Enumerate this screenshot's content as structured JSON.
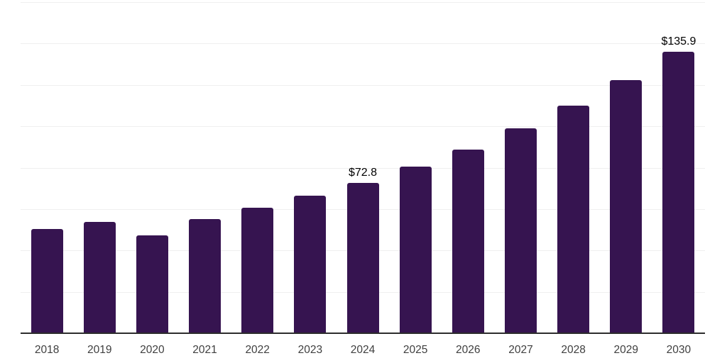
{
  "chart_data": {
    "type": "bar",
    "categories": [
      "2018",
      "2019",
      "2020",
      "2021",
      "2022",
      "2023",
      "2024",
      "2025",
      "2026",
      "2027",
      "2028",
      "2029",
      "2030"
    ],
    "values": [
      50.3,
      53.9,
      47.4,
      55.3,
      60.8,
      66.6,
      72.8,
      80.5,
      88.8,
      99.0,
      110.0,
      122.2,
      135.9
    ],
    "data_labels": {
      "2024": "$72.8",
      "2030": "$135.9"
    },
    "ylim": [
      0,
      160
    ],
    "gridline_step": 20,
    "grid": true,
    "legend": false,
    "colors": {
      "bar": "#361450",
      "axis": "#2d2d2d",
      "gridline": "#efefef",
      "data_label": "#000000",
      "tick_label": "#3f3f3f",
      "background": "#ffffff"
    }
  }
}
